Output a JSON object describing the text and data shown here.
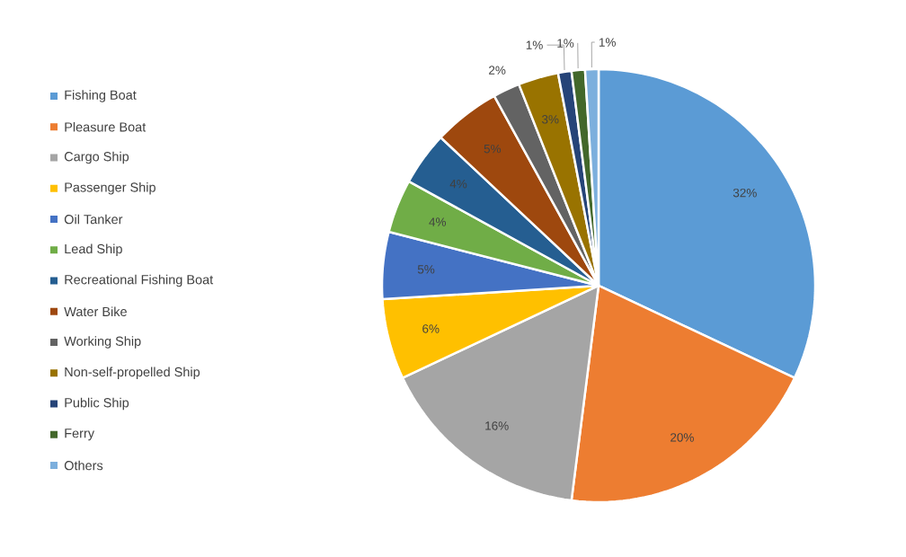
{
  "chart_data": {
    "type": "pie",
    "categories": [
      "Fishing Boat",
      "Pleasure Boat",
      "Cargo Ship",
      "Passenger Ship",
      "Oil Tanker",
      "Lead Ship",
      "Recreational Fishing Boat",
      "Water Bike",
      "Working Ship",
      "Non-self-propelled Ship",
      "Public Ship",
      "Ferry",
      "Others"
    ],
    "values": [
      32,
      20,
      16,
      6,
      5,
      4,
      4,
      5,
      2,
      3,
      1,
      1,
      1
    ],
    "colors": [
      "#5b9bd5",
      "#ed7d31",
      "#a5a5a5",
      "#ffc000",
      "#4472c4",
      "#70ad47",
      "#255e91",
      "#9e480e",
      "#636363",
      "#997300",
      "#264478",
      "#43682b",
      "#7cafdd"
    ],
    "value_labels": [
      "32%",
      "20%",
      "16%",
      "6%",
      "5%",
      "4%",
      "4%",
      "5%",
      "2%",
      "3%",
      "1%",
      "1%",
      "1%"
    ],
    "legend": "left"
  }
}
